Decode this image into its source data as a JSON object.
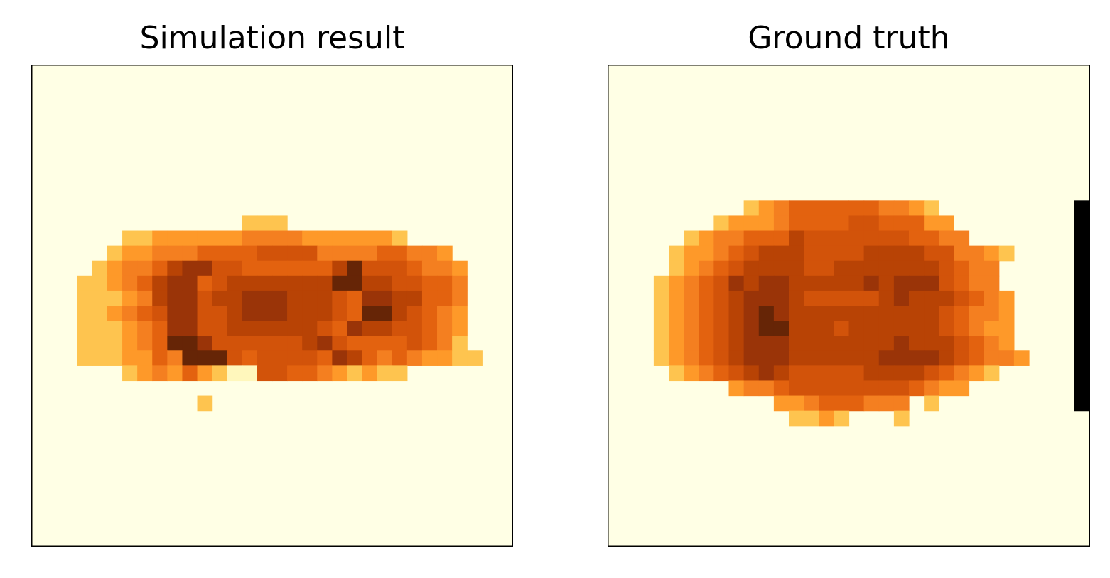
{
  "figure": {
    "background": "#ffffff",
    "colormap": "YlOrBr"
  },
  "chart_data": [
    {
      "type": "heatmap",
      "title": "Simulation result",
      "xlabel": "",
      "ylabel": "",
      "ticks": false,
      "grid": false,
      "value_range": [
        0,
        9
      ],
      "rows": [
        "................................",
        "................................",
        "................................",
        "................................",
        "................................",
        "................................",
        "................................",
        "................................",
        "................................",
        "................................",
        "..............222...............",
        "......2233333344443333332.......",
        ".....23344455556666444455443....",
        "....2344578866555555796665443...",
        "...22345788567777777997766554...",
        "...22234788677888777658877554...",
        "...22345688667888777659976543...",
        "...22234588667777776587766543...",
        "...22234599866666678655556542...",
        "...222335499965666658754543322..",
        "......2343532116655432322.......",
        "................................",
        "...........2....................",
        "................................",
        "................................",
        "................................",
        "................................",
        "................................",
        "................................",
        "................................",
        "................................",
        "................................"
      ]
    },
    {
      "type": "heatmap",
      "title": "Ground truth",
      "xlabel": "",
      "ylabel": "",
      "ticks": false,
      "grid": false,
      "value_range": [
        0,
        9
      ],
      "rows": [
        "................................",
        "................................",
        "................................",
        "................................",
        "................................",
        "................................",
        "................................",
        "................................",
        "................................",
        ".........2345555554432.........",
        ".......2333455556655533........",
        ".....2344555766666665544.......",
        "....23345677766667777664432....",
        "....2345677776677777776544.....",
        "...23456878877777878886544.....",
        "...234567888766666787776543....",
        "...234567898777777777765443....",
        "...234567899777677777765433....",
        "...234567888777777787776543....",
        "...2345678887777778888765443...",
        "....2345678766666777765432.....",
        "........3445666666665433.......",
        "...........334555444.2.........",
        "............2232...2............",
        "................................",
        "................................",
        "................................",
        "................................",
        "................................",
        "................................",
        "................................",
        "................................"
      ]
    }
  ]
}
